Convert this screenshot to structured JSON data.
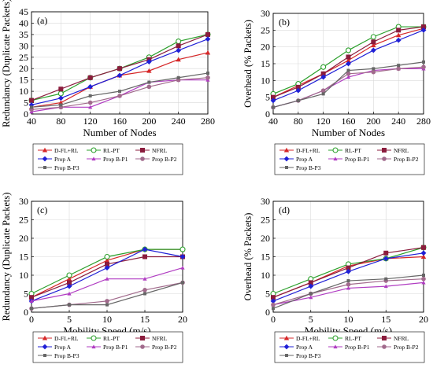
{
  "figure": {
    "series_names": [
      "D-FL+RL",
      "RL-PT",
      "NFRL",
      "Prop A",
      "Prop B-P1",
      "Prop B-P2",
      "Prop B-P3"
    ],
    "series_colors": [
      "#d62728",
      "#2ca02c",
      "#8b1c3d",
      "#1f1fd6",
      "#b03cc2",
      "#a16a8c",
      "#666666"
    ],
    "series_markers": [
      "triangle",
      "circle-open",
      "square",
      "diamond",
      "triangle-small",
      "circle-filled",
      "square-small"
    ]
  },
  "chart_data": [
    {
      "id": "a",
      "type": "line",
      "panel_label": "(a)",
      "xlabel": "Number of Nodes",
      "ylabel": "Redundancy (Duplicate Packets)",
      "x": [
        40,
        80,
        120,
        160,
        200,
        240,
        280
      ],
      "xticks": [
        40,
        80,
        120,
        160,
        200,
        240,
        280
      ],
      "yticks": [
        0,
        5,
        10,
        15,
        20,
        25,
        30,
        35,
        40,
        45
      ],
      "xlim": [
        40,
        280
      ],
      "ylim": [
        0,
        45
      ],
      "grid": true,
      "legend": "below",
      "series": [
        {
          "name": "D-FL+RL",
          "values": [
            3,
            5,
            12,
            17,
            19,
            24,
            27
          ]
        },
        {
          "name": "RL-PT",
          "values": [
            6,
            9,
            16,
            20,
            25,
            32,
            35
          ]
        },
        {
          "name": "NFRL",
          "values": [
            6,
            11,
            16,
            20,
            24,
            30,
            35
          ]
        },
        {
          "name": "Prop A",
          "values": [
            4,
            7,
            12,
            17,
            23,
            28,
            33
          ]
        },
        {
          "name": "Prop B-P1",
          "values": [
            1,
            3,
            3,
            8,
            14,
            15,
            15
          ]
        },
        {
          "name": "Prop B-P2",
          "values": [
            2,
            3,
            5,
            8,
            12,
            15,
            16
          ]
        },
        {
          "name": "Prop B-P3",
          "values": [
            3,
            4,
            8,
            10,
            14,
            16,
            18
          ]
        }
      ]
    },
    {
      "id": "b",
      "type": "line",
      "panel_label": "(b)",
      "xlabel": "Number of Nodes",
      "ylabel": "Overhead (% Packets)",
      "x": [
        40,
        80,
        120,
        160,
        200,
        240,
        280
      ],
      "xticks": [
        40,
        80,
        120,
        160,
        200,
        240,
        280
      ],
      "yticks": [
        0,
        5,
        10,
        15,
        20,
        25,
        30
      ],
      "xlim": [
        40,
        280
      ],
      "ylim": [
        0,
        30
      ],
      "grid": true,
      "legend": "below",
      "series": [
        {
          "name": "D-FL+RL",
          "values": [
            5,
            8.5,
            12,
            16,
            20.5,
            23.5,
            25.5
          ]
        },
        {
          "name": "RL-PT",
          "values": [
            6,
            9,
            14,
            19,
            23,
            26,
            26
          ]
        },
        {
          "name": "NFRL",
          "values": [
            5,
            8,
            12,
            17,
            21.5,
            25,
            26
          ]
        },
        {
          "name": "Prop A",
          "values": [
            4,
            7,
            11,
            15,
            19,
            22,
            25
          ]
        },
        {
          "name": "Prop B-P1",
          "values": [
            2,
            4,
            7,
            11,
            13,
            13.5,
            13.5
          ]
        },
        {
          "name": "Prop B-P2",
          "values": [
            2,
            4,
            7,
            12,
            12.5,
            13.5,
            14
          ]
        },
        {
          "name": "Prop B-P3",
          "values": [
            2,
            4,
            6,
            13,
            13.5,
            14.5,
            15.5
          ]
        }
      ]
    },
    {
      "id": "c",
      "type": "line",
      "panel_label": "(c)",
      "xlabel": "Mobility Speed (m/s)",
      "ylabel": "Redundancy (Duplicate Packets)",
      "x": [
        0,
        5,
        10,
        15,
        20
      ],
      "xticks": [
        0,
        5,
        10,
        15,
        20
      ],
      "yticks": [
        0,
        5,
        10,
        15,
        20,
        25,
        30
      ],
      "xlim": [
        0,
        20
      ],
      "ylim": [
        0,
        30
      ],
      "grid": true,
      "legend": "below",
      "series": [
        {
          "name": "D-FL+RL",
          "values": [
            4,
            9,
            14,
            17,
            17
          ]
        },
        {
          "name": "RL-PT",
          "values": [
            5,
            10,
            15,
            17,
            17
          ]
        },
        {
          "name": "NFRL",
          "values": [
            4,
            8,
            13,
            15,
            15
          ]
        },
        {
          "name": "Prop A",
          "values": [
            3,
            7,
            12,
            17,
            15
          ]
        },
        {
          "name": "Prop B-P1",
          "values": [
            3,
            5,
            9,
            9,
            12
          ]
        },
        {
          "name": "Prop B-P2",
          "values": [
            1,
            2,
            3,
            6,
            8
          ]
        },
        {
          "name": "Prop B-P3",
          "values": [
            1,
            2,
            2,
            5,
            8
          ]
        }
      ]
    },
    {
      "id": "d",
      "type": "line",
      "panel_label": "(d)",
      "xlabel": "Mobility Speed (m/s)",
      "ylabel": "Overhead (% Packets)",
      "x": [
        0,
        5,
        10,
        15,
        20
      ],
      "xticks": [
        0,
        5,
        10,
        15,
        20
      ],
      "yticks": [
        0,
        5,
        10,
        15,
        20,
        25,
        30
      ],
      "xlim": [
        0,
        20
      ],
      "ylim": [
        0,
        30
      ],
      "grid": true,
      "legend": "below",
      "series": [
        {
          "name": "D-FL+RL",
          "values": [
            4,
            8,
            12.5,
            14.5,
            15
          ]
        },
        {
          "name": "RL-PT",
          "values": [
            5,
            9,
            13,
            14.5,
            17.5
          ]
        },
        {
          "name": "NFRL",
          "values": [
            4,
            8,
            12,
            16,
            17.5
          ]
        },
        {
          "name": "Prop A",
          "values": [
            3,
            7,
            11,
            14.5,
            16
          ]
        },
        {
          "name": "Prop B-P1",
          "values": [
            2,
            4,
            6.5,
            7,
            8
          ]
        },
        {
          "name": "Prop B-P2",
          "values": [
            2,
            5,
            7.5,
            8.5,
            9
          ]
        },
        {
          "name": "Prop B-P3",
          "values": [
            1,
            5,
            8.5,
            9,
            10
          ]
        }
      ]
    }
  ]
}
